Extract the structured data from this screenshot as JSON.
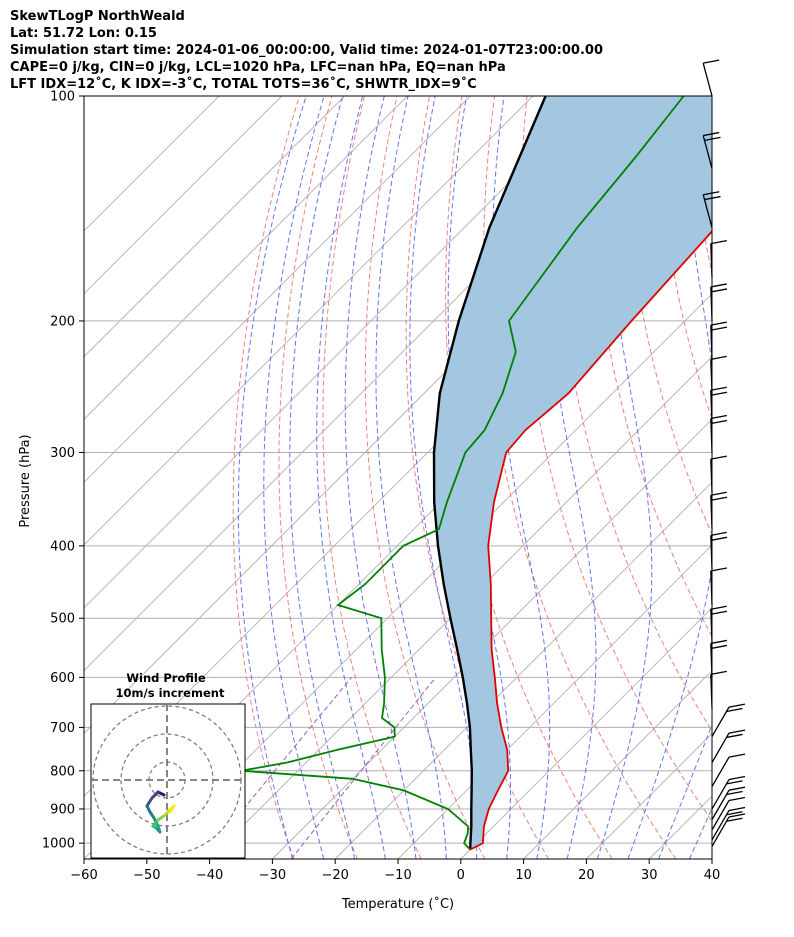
{
  "header": {
    "line1": "SkewTLogP NorthWeald",
    "line2": "Lat: 51.72   Lon: 0.15",
    "line3": "Simulation start time: 2024-01-06_00:00:00, Valid time: 2024-01-07T23:00:00.00",
    "line4": "CAPE=0 j/kg, CIN=0 j/kg, LCL=1020 hPa, LFC=nan hPa, EQ=nan hPa",
    "line5": "LFT IDX=12˚C, K IDX=-3˚C, TOTAL TOTS=36˚C, SHWTR_IDX=9˚C"
  },
  "chart_data": {
    "type": "line",
    "title": "SkewTLogP NorthWeald",
    "xlabel": "Temperature (˚C)",
    "ylabel": "Pressure (hPa)",
    "xlim": [
      -60,
      40
    ],
    "ylim": [
      1050,
      100
    ],
    "yscale": "log",
    "x_ticks": [
      "−60",
      "−50",
      "−40",
      "−30",
      "−20",
      "−10",
      "0",
      "10",
      "20",
      "30",
      "40"
    ],
    "y_ticks": [
      "100",
      "200",
      "300",
      "400",
      "500",
      "600",
      "700",
      "800",
      "900",
      "1000"
    ],
    "grid": true,
    "colors": {
      "temperature": "#e00000",
      "dewpoint": "#008000",
      "parcel": "#000000",
      "shade": "#a3c7e0",
      "dry_adiabat": "#f08080",
      "moist_adiabat": "#4a5cf0",
      "mixing_ratio": "#9a5cc8",
      "isotherm": "#b0b0b0"
    },
    "series": [
      {
        "name": "temperature",
        "pressure": [
          1020,
          1000,
          950,
          900,
          850,
          800,
          750,
          700,
          650,
          600,
          550,
          500,
          450,
          400,
          350,
          300,
          280,
          250,
          200,
          150,
          120,
          100
        ],
        "temp": [
          0.0,
          1.0,
          -1.5,
          -3.5,
          -5.0,
          -6.5,
          -10.0,
          -14.5,
          -19.0,
          -23.5,
          -28.5,
          -33.5,
          -39.0,
          -45.5,
          -51.5,
          -57.5,
          -58.0,
          -57.0,
          -58.5,
          -60.0,
          -61.0,
          -61.0
        ]
      },
      {
        "name": "dewpoint",
        "pressure": [
          1020,
          1000,
          970,
          950,
          900,
          850,
          820,
          800,
          780,
          750,
          720,
          700,
          680,
          650,
          600,
          550,
          500,
          480,
          450,
          400,
          380,
          350,
          300,
          280,
          250,
          220,
          200,
          150,
          120,
          100
        ],
        "temp": [
          0.0,
          -2.0,
          -3.0,
          -4.0,
          -10.0,
          -20.0,
          -30.0,
          -49.0,
          -43.0,
          -37.0,
          -30.0,
          -31.5,
          -35.0,
          -37.0,
          -41.0,
          -46.0,
          -51.0,
          -60.0,
          -59.0,
          -59.0,
          -56.0,
          -59.0,
          -64.0,
          -64.5,
          -67.5,
          -72.0,
          -78.0,
          -82.0,
          -84.0,
          -86.0
        ]
      },
      {
        "name": "parcel",
        "pressure": [
          1020,
          1000,
          950,
          900,
          850,
          800,
          750,
          700,
          650,
          600,
          550,
          500,
          450,
          400,
          350,
          300,
          250,
          200,
          150,
          100
        ],
        "temp": [
          0.0,
          -1.0,
          -3.5,
          -6.3,
          -9.2,
          -12.3,
          -15.8,
          -19.5,
          -23.8,
          -28.6,
          -34.0,
          -40.0,
          -46.5,
          -53.5,
          -61.0,
          -69.0,
          -77.5,
          -86.0,
          -96.0,
          -108.0
        ]
      }
    ],
    "wind_profile_inset": {
      "title": "Wind Profile",
      "subtitle": "10m/s increment"
    }
  }
}
